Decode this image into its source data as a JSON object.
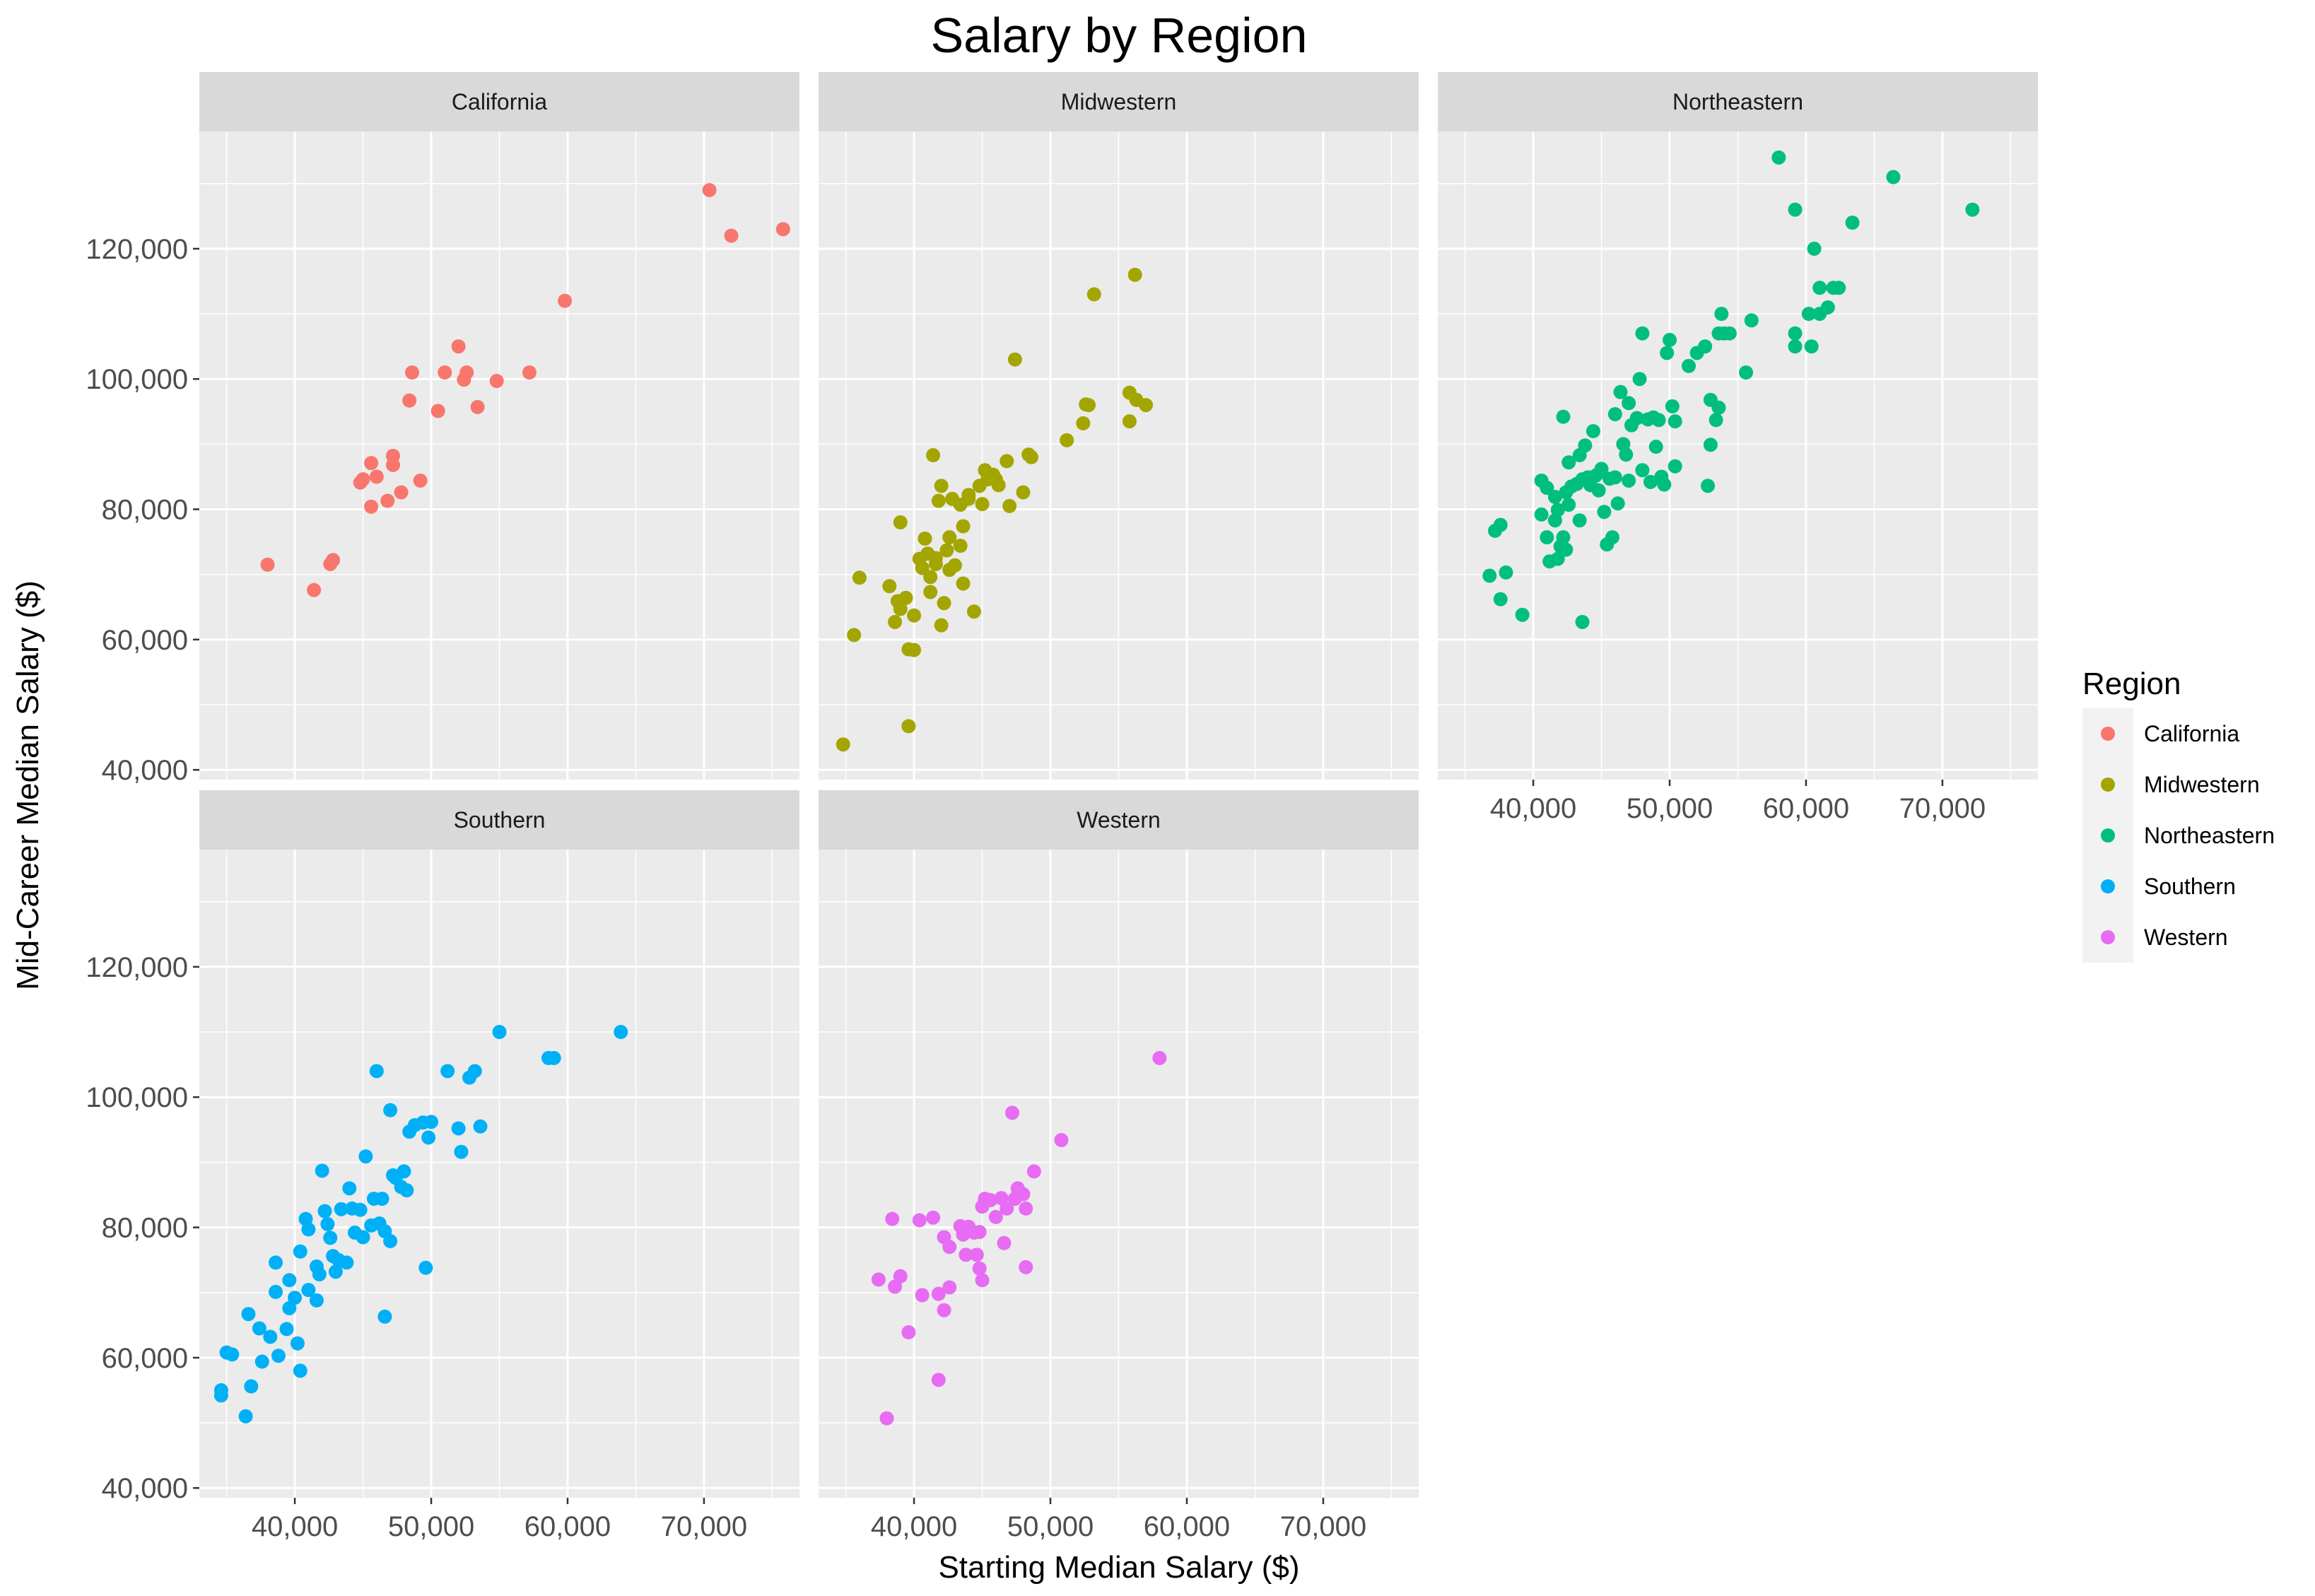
{
  "chart_data": {
    "type": "scatter",
    "title": "Salary by Region",
    "xlabel": "Starting Median Salary ($)",
    "ylabel": "Mid-Career Median Salary ($)",
    "xlim": [
      33000,
      77000
    ],
    "ylim": [
      38500,
      138000
    ],
    "x_ticks": [
      40000,
      50000,
      60000,
      70000
    ],
    "x_tick_labels": [
      "40,000",
      "50,000",
      "60,000",
      "70,000"
    ],
    "y_ticks": [
      40000,
      60000,
      80000,
      100000,
      120000
    ],
    "y_tick_labels": [
      "40,000",
      "60,000",
      "80,000",
      "100,000",
      "120,000"
    ],
    "grid": true,
    "legend": {
      "title": "Region",
      "position": "right",
      "entries": [
        "California",
        "Midwestern",
        "Northeastern",
        "Southern",
        "Western"
      ]
    },
    "colors": {
      "California": "#F8766D",
      "Midwestern": "#A3A500",
      "Northeastern": "#00BF7D",
      "Southern": "#00B0F6",
      "Western": "#E76BF3",
      "panel_background": "#EBEBEB",
      "strip_background": "#D9D9D9",
      "grid_major": "#FFFFFF",
      "text": "#000000",
      "tick_text": "#4D4D4D"
    },
    "panels": [
      {
        "name": "California",
        "points": [
          [
            38000,
            71500
          ],
          [
            41400,
            67600
          ],
          [
            42600,
            71600
          ],
          [
            42800,
            72200
          ],
          [
            44800,
            84100
          ],
          [
            45000,
            84600
          ],
          [
            45600,
            80400
          ],
          [
            45600,
            87100
          ],
          [
            46000,
            85000
          ],
          [
            46800,
            81300
          ],
          [
            47200,
            86800
          ],
          [
            47200,
            88200
          ],
          [
            47800,
            82600
          ],
          [
            48400,
            96700
          ],
          [
            48600,
            101000
          ],
          [
            49200,
            84400
          ],
          [
            50500,
            95100
          ],
          [
            51000,
            101000
          ],
          [
            52000,
            105000
          ],
          [
            52400,
            99900
          ],
          [
            52600,
            101000
          ],
          [
            53400,
            95700
          ],
          [
            54800,
            99700
          ],
          [
            57200,
            101000
          ],
          [
            59800,
            112000
          ],
          [
            70400,
            129000
          ],
          [
            72000,
            122000
          ],
          [
            75800,
            123000
          ]
        ]
      },
      {
        "name": "Midwestern",
        "points": [
          [
            34800,
            43900
          ],
          [
            35600,
            60700
          ],
          [
            36000,
            69500
          ],
          [
            38200,
            68200
          ],
          [
            38600,
            62700
          ],
          [
            38800,
            65900
          ],
          [
            39000,
            78000
          ],
          [
            39000,
            64700
          ],
          [
            39400,
            66400
          ],
          [
            39600,
            46700
          ],
          [
            39600,
            58500
          ],
          [
            40000,
            63700
          ],
          [
            40000,
            58400
          ],
          [
            40400,
            72400
          ],
          [
            40600,
            71000
          ],
          [
            40800,
            75500
          ],
          [
            41000,
            73200
          ],
          [
            41200,
            69600
          ],
          [
            41200,
            67300
          ],
          [
            41400,
            88300
          ],
          [
            41600,
            71600
          ],
          [
            41600,
            72500
          ],
          [
            41800,
            81300
          ],
          [
            42000,
            62200
          ],
          [
            42000,
            83600
          ],
          [
            42200,
            65600
          ],
          [
            42400,
            73700
          ],
          [
            42600,
            70700
          ],
          [
            42600,
            75700
          ],
          [
            42800,
            81600
          ],
          [
            43000,
            71400
          ],
          [
            43400,
            74400
          ],
          [
            43600,
            68600
          ],
          [
            43400,
            80700
          ],
          [
            43600,
            77400
          ],
          [
            44000,
            82200
          ],
          [
            44000,
            81600
          ],
          [
            44400,
            64300
          ],
          [
            44800,
            83600
          ],
          [
            45000,
            80800
          ],
          [
            45200,
            86000
          ],
          [
            45400,
            84600
          ],
          [
            45800,
            85300
          ],
          [
            46000,
            84600
          ],
          [
            46200,
            83700
          ],
          [
            46800,
            87400
          ],
          [
            47000,
            80500
          ],
          [
            47400,
            103000
          ],
          [
            48000,
            82600
          ],
          [
            48400,
            88400
          ],
          [
            48600,
            88000
          ],
          [
            51200,
            90600
          ],
          [
            52400,
            93200
          ],
          [
            52600,
            96100
          ],
          [
            52800,
            96000
          ],
          [
            53200,
            113000
          ],
          [
            55800,
            93500
          ],
          [
            55800,
            97900
          ],
          [
            56200,
            116000
          ],
          [
            56300,
            96800
          ],
          [
            57000,
            96000
          ]
        ]
      },
      {
        "name": "Northeastern",
        "points": [
          [
            36800,
            69800
          ],
          [
            37200,
            76700
          ],
          [
            37600,
            66200
          ],
          [
            37600,
            77600
          ],
          [
            38000,
            70300
          ],
          [
            39200,
            63800
          ],
          [
            40600,
            84400
          ],
          [
            40600,
            79200
          ],
          [
            41000,
            83300
          ],
          [
            41000,
            75700
          ],
          [
            41200,
            72000
          ],
          [
            41600,
            78300
          ],
          [
            41600,
            81900
          ],
          [
            41800,
            72400
          ],
          [
            41800,
            79900
          ],
          [
            42000,
            74300
          ],
          [
            42200,
            94200
          ],
          [
            42200,
            75700
          ],
          [
            42400,
            73800
          ],
          [
            42400,
            82600
          ],
          [
            42600,
            87200
          ],
          [
            42600,
            80700
          ],
          [
            42800,
            83500
          ],
          [
            43200,
            83900
          ],
          [
            43400,
            88300
          ],
          [
            43400,
            78300
          ],
          [
            43600,
            62700
          ],
          [
            43600,
            84600
          ],
          [
            43800,
            89800
          ],
          [
            44000,
            84900
          ],
          [
            44200,
            83700
          ],
          [
            44400,
            92000
          ],
          [
            44600,
            85200
          ],
          [
            44800,
            82900
          ],
          [
            45000,
            86200
          ],
          [
            45200,
            79600
          ],
          [
            45400,
            74600
          ],
          [
            45600,
            84700
          ],
          [
            45800,
            75700
          ],
          [
            46000,
            94600
          ],
          [
            46000,
            84900
          ],
          [
            46200,
            80900
          ],
          [
            46400,
            98000
          ],
          [
            46600,
            90000
          ],
          [
            46800,
            88400
          ],
          [
            47000,
            96300
          ],
          [
            47000,
            84400
          ],
          [
            47200,
            92900
          ],
          [
            47600,
            94000
          ],
          [
            47800,
            100000
          ],
          [
            48000,
            107000
          ],
          [
            48000,
            86000
          ],
          [
            48400,
            93800
          ],
          [
            48600,
            84200
          ],
          [
            48800,
            94100
          ],
          [
            49000,
            89600
          ],
          [
            49200,
            93700
          ],
          [
            49400,
            85000
          ],
          [
            49600,
            83800
          ],
          [
            49800,
            104000
          ],
          [
            50000,
            106000
          ],
          [
            50200,
            95800
          ],
          [
            50400,
            86600
          ],
          [
            50400,
            93500
          ],
          [
            51400,
            102000
          ],
          [
            52000,
            104000
          ],
          [
            52600,
            105000
          ],
          [
            52800,
            83600
          ],
          [
            53000,
            96800
          ],
          [
            53000,
            89900
          ],
          [
            53400,
            93700
          ],
          [
            53600,
            95600
          ],
          [
            53600,
            107000
          ],
          [
            53800,
            110000
          ],
          [
            54000,
            107000
          ],
          [
            54400,
            107000
          ],
          [
            55600,
            101000
          ],
          [
            56000,
            109000
          ],
          [
            58000,
            134000
          ],
          [
            59200,
            126000
          ],
          [
            59200,
            107000
          ],
          [
            59200,
            105000
          ],
          [
            60200,
            110000
          ],
          [
            60400,
            105000
          ],
          [
            60600,
            120000
          ],
          [
            61000,
            110000
          ],
          [
            61000,
            114000
          ],
          [
            61600,
            111000
          ],
          [
            62000,
            114000
          ],
          [
            62400,
            114000
          ],
          [
            63400,
            124000
          ],
          [
            66400,
            131000
          ],
          [
            72200,
            126000
          ]
        ]
      },
      {
        "name": "Southern",
        "points": [
          [
            34600,
            54200
          ],
          [
            34600,
            55000
          ],
          [
            35000,
            60800
          ],
          [
            35400,
            60500
          ],
          [
            36400,
            51000
          ],
          [
            36600,
            66700
          ],
          [
            36800,
            55600
          ],
          [
            37400,
            64500
          ],
          [
            37600,
            59400
          ],
          [
            38200,
            63200
          ],
          [
            38600,
            74600
          ],
          [
            38600,
            70100
          ],
          [
            38800,
            60300
          ],
          [
            39400,
            64400
          ],
          [
            39600,
            71900
          ],
          [
            39600,
            67600
          ],
          [
            40000,
            69200
          ],
          [
            40200,
            62200
          ],
          [
            40400,
            58000
          ],
          [
            40400,
            76300
          ],
          [
            40800,
            81300
          ],
          [
            41000,
            79700
          ],
          [
            41000,
            70400
          ],
          [
            41600,
            74000
          ],
          [
            41600,
            68800
          ],
          [
            41800,
            72800
          ],
          [
            42000,
            88700
          ],
          [
            42200,
            82500
          ],
          [
            42400,
            80500
          ],
          [
            42600,
            78400
          ],
          [
            42800,
            75600
          ],
          [
            43000,
            73200
          ],
          [
            43200,
            75000
          ],
          [
            43400,
            82800
          ],
          [
            43800,
            74600
          ],
          [
            44000,
            86000
          ],
          [
            44200,
            82900
          ],
          [
            44400,
            79200
          ],
          [
            44800,
            82700
          ],
          [
            45000,
            78500
          ],
          [
            45200,
            90900
          ],
          [
            45600,
            80300
          ],
          [
            45800,
            84400
          ],
          [
            46000,
            104000
          ],
          [
            46200,
            80600
          ],
          [
            46400,
            84400
          ],
          [
            46600,
            79400
          ],
          [
            46600,
            66300
          ],
          [
            47000,
            98000
          ],
          [
            47000,
            77900
          ],
          [
            47200,
            88000
          ],
          [
            47400,
            87600
          ],
          [
            47800,
            86200
          ],
          [
            48000,
            88600
          ],
          [
            48200,
            85700
          ],
          [
            48400,
            94700
          ],
          [
            48800,
            95700
          ],
          [
            49400,
            96100
          ],
          [
            49600,
            73800
          ],
          [
            49800,
            93800
          ],
          [
            50000,
            96200
          ],
          [
            51200,
            104000
          ],
          [
            52000,
            95200
          ],
          [
            52200,
            91600
          ],
          [
            52800,
            103000
          ],
          [
            53200,
            104000
          ],
          [
            53600,
            95500
          ],
          [
            55000,
            110000
          ],
          [
            58600,
            106000
          ],
          [
            59000,
            106000
          ],
          [
            63900,
            110000
          ]
        ]
      },
      {
        "name": "Western",
        "points": [
          [
            37400,
            72000
          ],
          [
            38000,
            50700
          ],
          [
            38400,
            81300
          ],
          [
            38600,
            70900
          ],
          [
            39000,
            72500
          ],
          [
            39600,
            63900
          ],
          [
            40400,
            81100
          ],
          [
            40600,
            69600
          ],
          [
            41400,
            81500
          ],
          [
            41800,
            56600
          ],
          [
            41800,
            69800
          ],
          [
            42200,
            78500
          ],
          [
            42200,
            67300
          ],
          [
            42600,
            70800
          ],
          [
            42600,
            77000
          ],
          [
            43400,
            80200
          ],
          [
            43600,
            78900
          ],
          [
            43800,
            75800
          ],
          [
            44000,
            80100
          ],
          [
            44400,
            79200
          ],
          [
            44600,
            75800
          ],
          [
            44800,
            79300
          ],
          [
            44800,
            73700
          ],
          [
            45000,
            83200
          ],
          [
            45000,
            71900
          ],
          [
            45200,
            84400
          ],
          [
            45600,
            84200
          ],
          [
            46000,
            81600
          ],
          [
            46400,
            84500
          ],
          [
            46600,
            77600
          ],
          [
            46800,
            82900
          ],
          [
            47200,
            97600
          ],
          [
            47400,
            84400
          ],
          [
            47600,
            86000
          ],
          [
            48000,
            85100
          ],
          [
            48200,
            82900
          ],
          [
            48200,
            73900
          ],
          [
            48800,
            88600
          ],
          [
            50800,
            93400
          ],
          [
            58000,
            106000
          ]
        ]
      }
    ]
  }
}
